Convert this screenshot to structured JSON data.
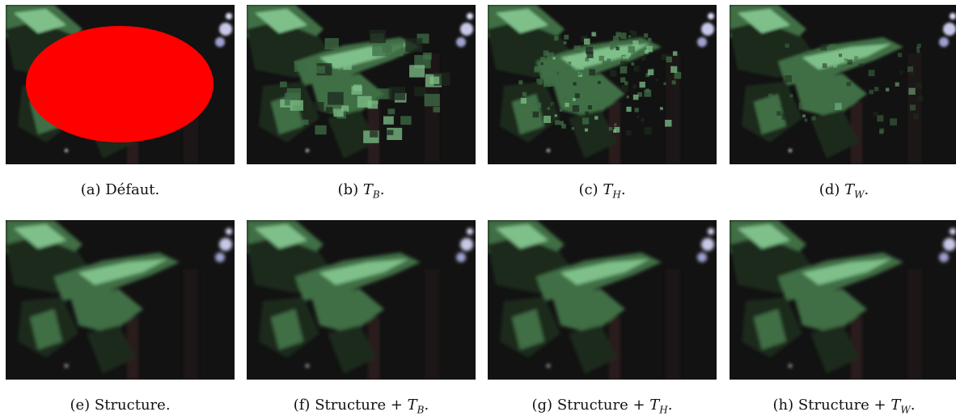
{
  "figure": {
    "panels": [
      {
        "tag": "(a)",
        "text": "Défaut.",
        "var": "",
        "sub": "",
        "mask": true,
        "variant": "mask"
      },
      {
        "tag": "(b)",
        "text": "",
        "var": "T",
        "sub": "B",
        "mask": false,
        "variant": "blocky"
      },
      {
        "tag": "(c)",
        "text": "",
        "var": "T",
        "sub": "H",
        "mask": false,
        "variant": "noisy"
      },
      {
        "tag": "(d)",
        "text": "",
        "var": "T",
        "sub": "W",
        "mask": false,
        "variant": "smooth-patch"
      },
      {
        "tag": "(e)",
        "text": "Structure",
        "var": "",
        "sub": "",
        "mask": false,
        "variant": "clean"
      },
      {
        "tag": "(f)",
        "text": "Structure + ",
        "var": "T",
        "sub": "B",
        "mask": false,
        "variant": "clean"
      },
      {
        "tag": "(g)",
        "text": "Structure + ",
        "var": "T",
        "sub": "H",
        "mask": false,
        "variant": "clean"
      },
      {
        "tag": "(h)",
        "text": "Structure + ",
        "var": "T",
        "sub": "W",
        "mask": false,
        "variant": "clean"
      }
    ],
    "colors": {
      "mask": "#ff0000",
      "foliage_dark": "#1c2a1c",
      "foliage_mid": "#3f6e45",
      "foliage_light": "#7fc08a",
      "background": "#121212"
    }
  }
}
